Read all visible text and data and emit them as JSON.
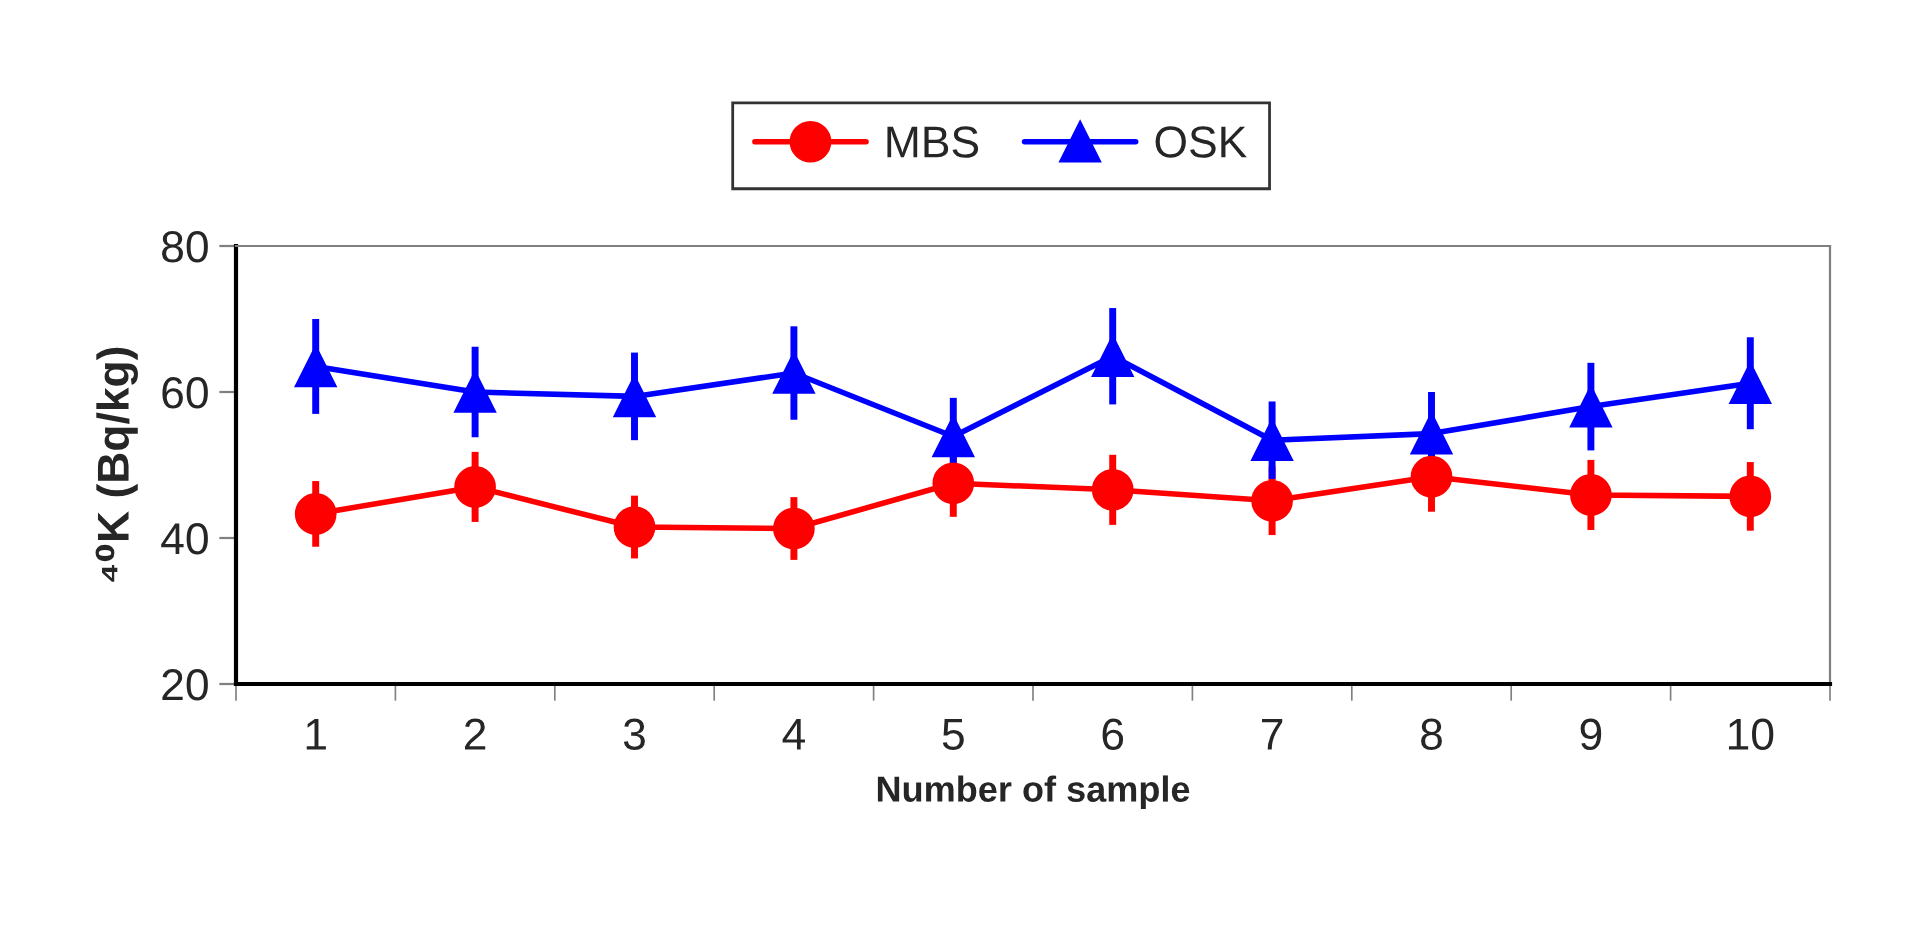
{
  "chart_data": {
    "type": "line",
    "xlabel": "Number of sample",
    "ylabel": "⁴⁰K (Bq/kg)",
    "categories": [
      "1",
      "2",
      "3",
      "4",
      "5",
      "6",
      "7",
      "8",
      "9",
      "10"
    ],
    "series": [
      {
        "name": "MBS",
        "color": "#ff0000",
        "marker": "circle",
        "values": [
          43.3,
          47,
          41.5,
          41.3,
          47.5,
          46.6,
          45.1,
          48.4,
          45.9,
          45.7
        ],
        "errors": [
          4.5,
          4.8,
          4.3,
          4.3,
          4.6,
          4.8,
          4.7,
          4.8,
          4.8,
          4.7
        ]
      },
      {
        "name": "OSK",
        "color": "#0000ff",
        "marker": "triangle",
        "values": [
          63.5,
          60,
          59.4,
          62.6,
          53.9,
          64.9,
          53.4,
          54.3,
          58,
          61.2
        ],
        "errors": [
          6.5,
          6.2,
          6,
          6.4,
          5.3,
          6.6,
          5.3,
          5.7,
          6,
          6.3
        ]
      }
    ],
    "ylim": [
      20,
      80
    ],
    "yticks": [
      20,
      40,
      60,
      80
    ],
    "grid": false,
    "legend": "top",
    "line_style": "solid"
  }
}
